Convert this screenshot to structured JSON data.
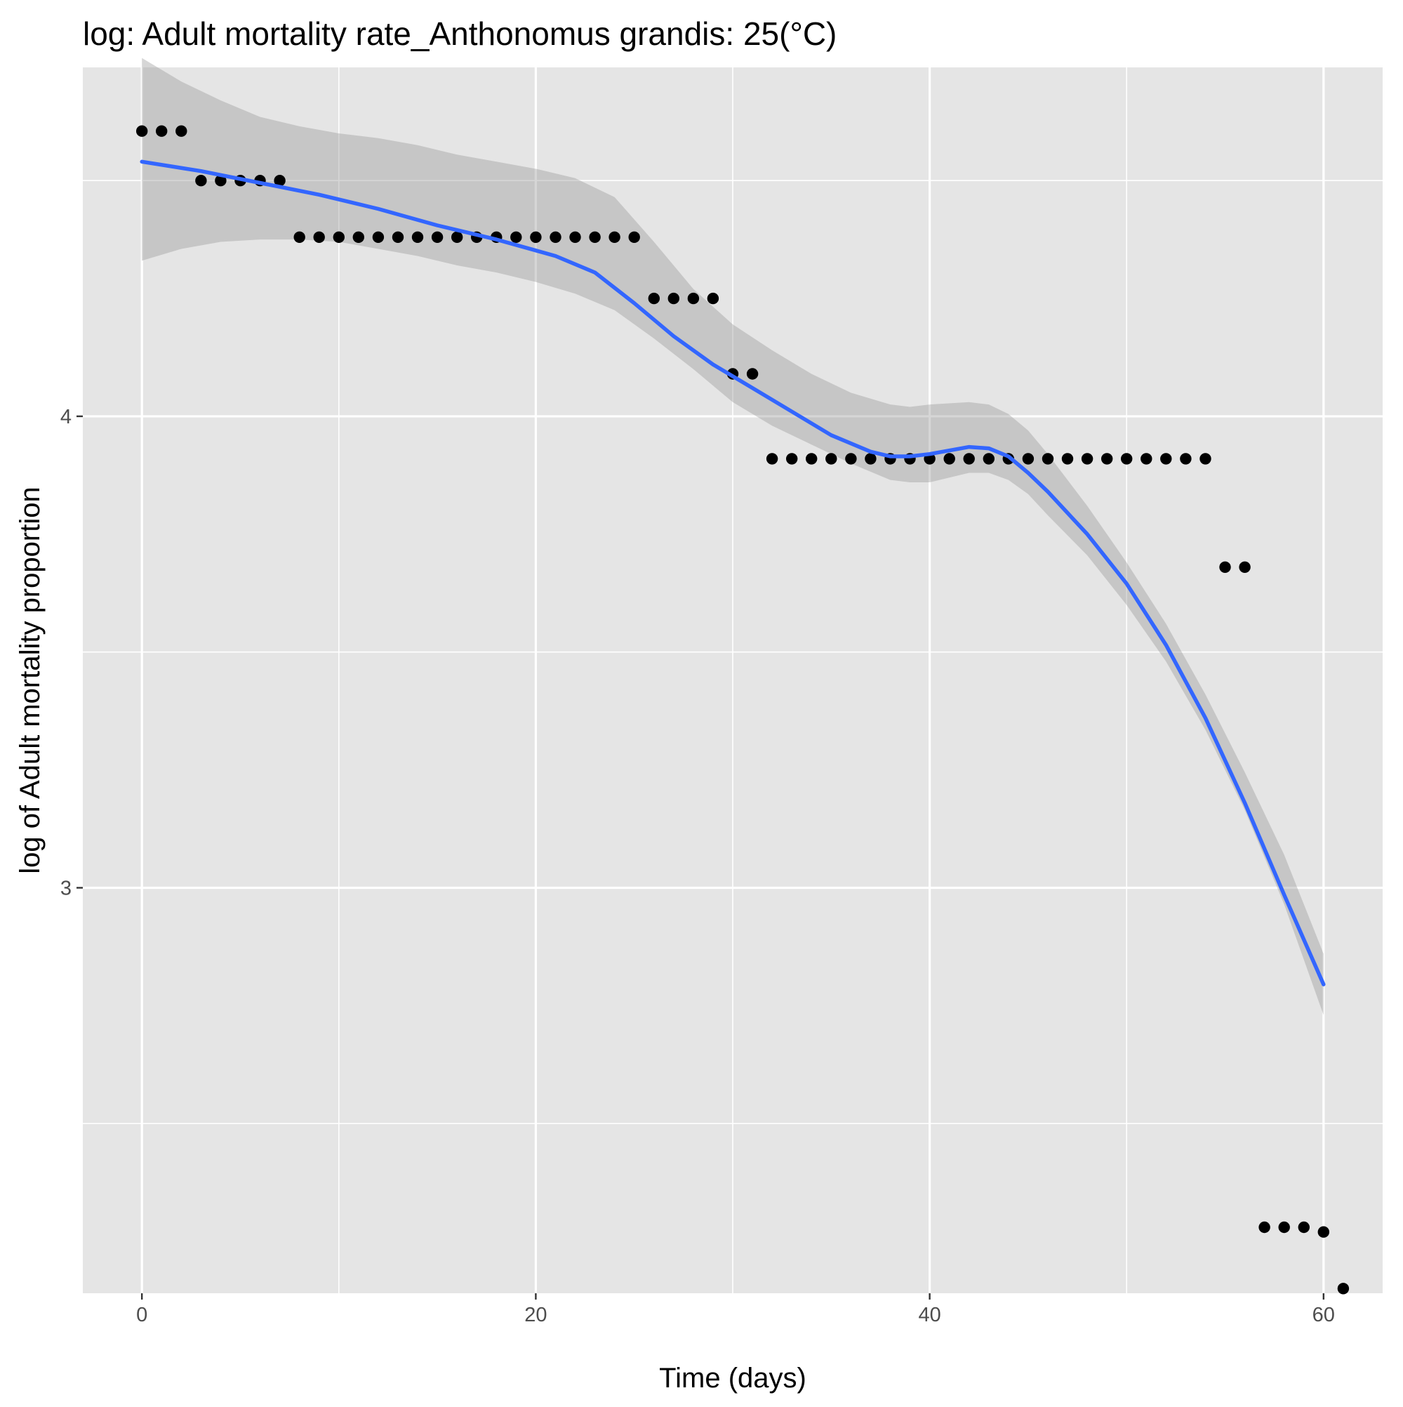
{
  "chart_data": {
    "type": "scatter",
    "title": "log: Adult mortality rate_Anthonomus grandis: 25(°C)",
    "xlabel": "Time (days)",
    "ylabel": "log of Adult mortality proportion",
    "xlim": [
      -3,
      63
    ],
    "ylim": [
      2.14,
      4.74
    ],
    "x_ticks": [
      0,
      20,
      40,
      60
    ],
    "x_tick_labels": [
      "0",
      "20",
      "40",
      "60"
    ],
    "x_minor_ticks": [
      10,
      30,
      50
    ],
    "y_ticks": [
      3,
      4
    ],
    "y_tick_labels": [
      "3",
      "4"
    ],
    "y_minor_ticks": [
      2.5,
      3.5,
      4.5
    ],
    "grid": true,
    "colors": {
      "panel": "#e5e5e5",
      "grid": "#ffffff",
      "points": "#000000",
      "smooth_line": "#3366ff",
      "ribbon": "#999999"
    },
    "series": [
      {
        "kind": "points",
        "x": [
          0,
          1,
          2,
          3,
          4,
          5,
          6,
          7,
          8,
          9,
          10,
          11,
          12,
          13,
          14,
          15,
          16,
          17,
          18,
          19,
          20,
          21,
          22,
          23,
          24,
          25,
          26,
          27,
          28,
          29,
          30,
          31,
          32,
          33,
          34,
          35,
          36,
          37,
          38,
          39,
          40,
          41,
          42,
          43,
          44,
          45,
          46,
          47,
          48,
          49,
          50,
          51,
          52,
          53,
          54,
          55,
          56,
          57,
          58,
          59,
          60,
          61
        ],
        "y": [
          4.605,
          4.605,
          4.605,
          4.5,
          4.5,
          4.5,
          4.5,
          4.5,
          4.38,
          4.38,
          4.38,
          4.38,
          4.38,
          4.38,
          4.38,
          4.38,
          4.38,
          4.38,
          4.38,
          4.38,
          4.38,
          4.38,
          4.38,
          4.38,
          4.38,
          4.38,
          4.25,
          4.25,
          4.25,
          4.25,
          4.09,
          4.09,
          3.91,
          3.91,
          3.91,
          3.91,
          3.91,
          3.91,
          3.91,
          3.91,
          3.91,
          3.91,
          3.91,
          3.91,
          3.91,
          3.91,
          3.91,
          3.91,
          3.91,
          3.91,
          3.91,
          3.91,
          3.91,
          3.91,
          3.91,
          3.68,
          3.68,
          2.28,
          2.28,
          2.28,
          2.27,
          2.15
        ]
      },
      {
        "kind": "smooth",
        "x": [
          0,
          3,
          6,
          9,
          12,
          15,
          18,
          21,
          23,
          25,
          27,
          29,
          31,
          33,
          35,
          37,
          38,
          39,
          40,
          42,
          43,
          44,
          45,
          46,
          48,
          50,
          52,
          54,
          56,
          58,
          60
        ],
        "y": [
          4.54,
          4.52,
          4.495,
          4.47,
          4.44,
          4.405,
          4.375,
          4.34,
          4.305,
          4.24,
          4.17,
          4.11,
          4.06,
          4.01,
          3.96,
          3.925,
          3.915,
          3.915,
          3.92,
          3.935,
          3.932,
          3.915,
          3.88,
          3.84,
          3.75,
          3.645,
          3.515,
          3.36,
          3.18,
          2.985,
          2.795
        ]
      },
      {
        "kind": "ribbon",
        "x": [
          0,
          2,
          4,
          6,
          8,
          10,
          12,
          14,
          16,
          18,
          20,
          22,
          24,
          26,
          28,
          30,
          32,
          34,
          36,
          38,
          39,
          40,
          42,
          43,
          44,
          45,
          46,
          48,
          50,
          52,
          54,
          56,
          58,
          60
        ],
        "ymin": [
          4.33,
          4.355,
          4.37,
          4.375,
          4.375,
          4.37,
          4.355,
          4.34,
          4.32,
          4.305,
          4.285,
          4.26,
          4.225,
          4.165,
          4.1,
          4.03,
          3.98,
          3.94,
          3.9,
          3.865,
          3.86,
          3.86,
          3.88,
          3.88,
          3.865,
          3.835,
          3.79,
          3.705,
          3.6,
          3.48,
          3.335,
          3.165,
          2.965,
          2.73
        ],
        "ymax": [
          4.76,
          4.71,
          4.67,
          4.635,
          4.615,
          4.6,
          4.59,
          4.575,
          4.555,
          4.54,
          4.525,
          4.505,
          4.465,
          4.37,
          4.27,
          4.195,
          4.14,
          4.09,
          4.05,
          4.025,
          4.02,
          4.025,
          4.03,
          4.025,
          4.005,
          3.97,
          3.92,
          3.81,
          3.69,
          3.56,
          3.41,
          3.245,
          3.07,
          2.86
        ]
      }
    ]
  }
}
